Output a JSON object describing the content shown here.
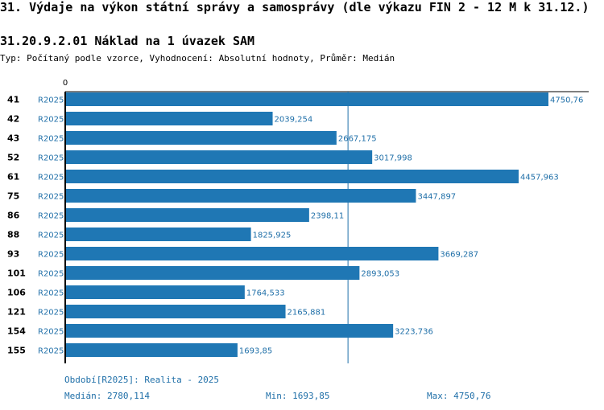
{
  "header": {
    "title": "31. Výdaje na výkon státní správy a samosprávy (dle výkazu FIN 2 - 12 M k 31.12.)",
    "subtitle": "31.20.9.2.01 Náklad na 1 úvazek SAM",
    "type_label": "Typ:",
    "type_value": "Počítaný podle vzorce,",
    "eval_label": "Vyhodnocení:",
    "eval_value": "Absolutní hodnoty,",
    "avg_label": "Průměr:",
    "avg_value": "Medián"
  },
  "chart_data": {
    "type": "bar",
    "orientation": "horizontal",
    "categories": [
      "41",
      "42",
      "43",
      "52",
      "61",
      "75",
      "86",
      "88",
      "93",
      "101",
      "106",
      "121",
      "154",
      "155"
    ],
    "series": [
      {
        "name": "R2025",
        "values": [
          4750.76,
          2039.254,
          2667.175,
          3017.998,
          4457.963,
          3447.897,
          2398.11,
          1825.925,
          3669.287,
          2893.053,
          1764.533,
          2165.881,
          3223.736,
          1693.85
        ],
        "labels": [
          "4750,76",
          "2039,254",
          "2667,175",
          "3017,998",
          "4457,963",
          "3447,897",
          "2398,11",
          "1825,925",
          "3669,287",
          "2893,053",
          "1764,533",
          "2165,881",
          "3223,736",
          "1693,85"
        ]
      }
    ],
    "xlim": [
      0,
      4750.76
    ],
    "x_tick_label": "0",
    "median": 2780.114,
    "colors": {
      "bar": "#1f77b4",
      "label": "#1f6fa8",
      "median_line": "#1f6fa8"
    }
  },
  "footer": {
    "period": "Období[R2025]: Realita - 2025",
    "median_label": "Medián:",
    "median_value": "2780,114",
    "min_label": "Min:",
    "min_value": "1693,85",
    "max_label": "Max:",
    "max_value": "4750,76"
  }
}
